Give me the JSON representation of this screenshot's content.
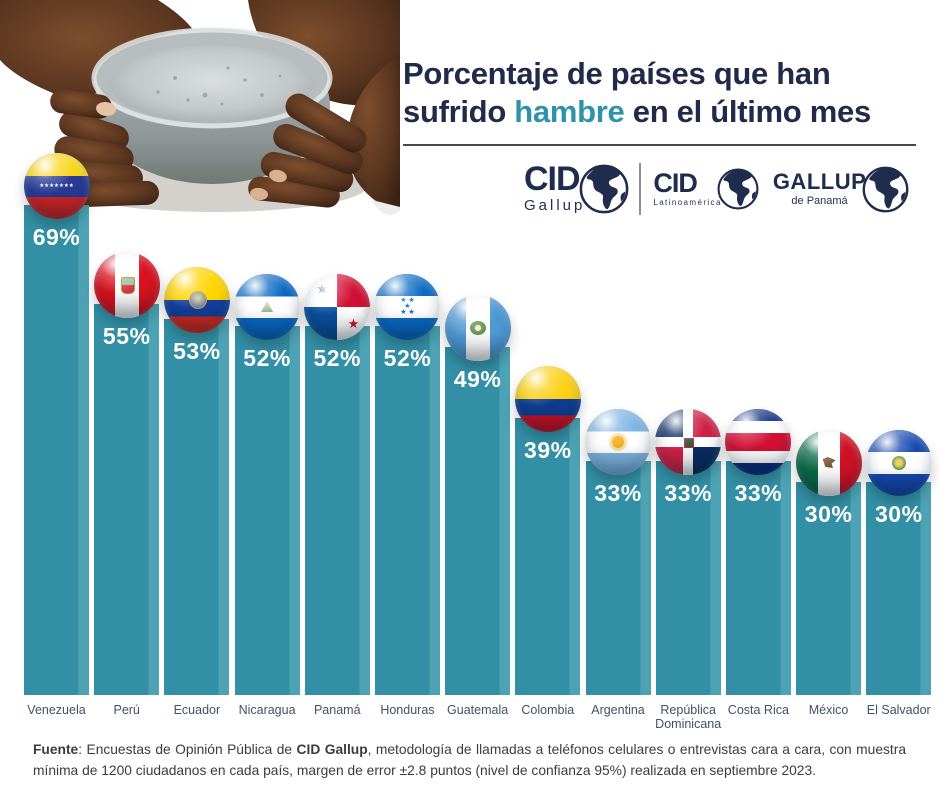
{
  "header": {
    "title_line1": "Porcentaje de países que han",
    "title_line2_pre": "sufrido",
    "title_highlight": "hambre",
    "title_line2_post": "en el último mes",
    "title_color": "#212b49",
    "accent_color": "#2e93a8"
  },
  "logos": {
    "cid_gallup": {
      "name": "CID",
      "sub": "Gallup"
    },
    "cid_latinoamerica": {
      "name": "CID",
      "sub": "Latinoamérica"
    },
    "gallup_panama": {
      "name": "GALLUP",
      "sub": "de Panamá"
    },
    "globe_icon": "globe-americas-icon",
    "brand_color": "#1f2c4d"
  },
  "chart_data": {
    "type": "bar",
    "title": "Porcentaje de países que han sufrido hambre en el último mes",
    "categories": [
      "Venezuela",
      "Perú",
      "Ecuador",
      "Nicaragua",
      "Panamá",
      "Honduras",
      "Guatemala",
      "Colombia",
      "Argentina",
      "República Dominicana",
      "Costa Rica",
      "México",
      "El Salvador"
    ],
    "values": [
      69,
      55,
      53,
      52,
      52,
      52,
      49,
      39,
      33,
      33,
      33,
      30,
      30
    ],
    "value_labels": [
      "69%",
      "55%",
      "53%",
      "52%",
      "52%",
      "52%",
      "49%",
      "39%",
      "33%",
      "33%",
      "33%",
      "30%",
      "30%"
    ],
    "flag_icons": [
      "venezuela-flag-icon",
      "peru-flag-icon",
      "ecuador-flag-icon",
      "nicaragua-flag-icon",
      "panama-flag-icon",
      "honduras-flag-icon",
      "guatemala-flag-icon",
      "colombia-flag-icon",
      "argentina-flag-icon",
      "republica-dominicana-flag-icon",
      "costa-rica-flag-icon",
      "mexico-flag-icon",
      "el-salvador-flag-icon"
    ],
    "bar_color": "#338fa5",
    "value_label_color": "#ffffff",
    "category_label_color": "#42506b",
    "xlabel": "",
    "ylabel": "",
    "ylim": [
      0,
      100
    ],
    "grid": false,
    "legend": false
  },
  "footer": {
    "label_bold": "Fuente",
    "text_1": ": Encuestas de Opinión Pública de ",
    "brand_bold": "CID Gallup",
    "text_2": ", metodología de llamadas a teléfonos celulares o entrevistas cara a cara, con muestra mínima de 1200 ciudadanos en cada país, margen de error ±2.8 puntos (nivel de confianza 95%) realizada en septiembre 2023."
  }
}
